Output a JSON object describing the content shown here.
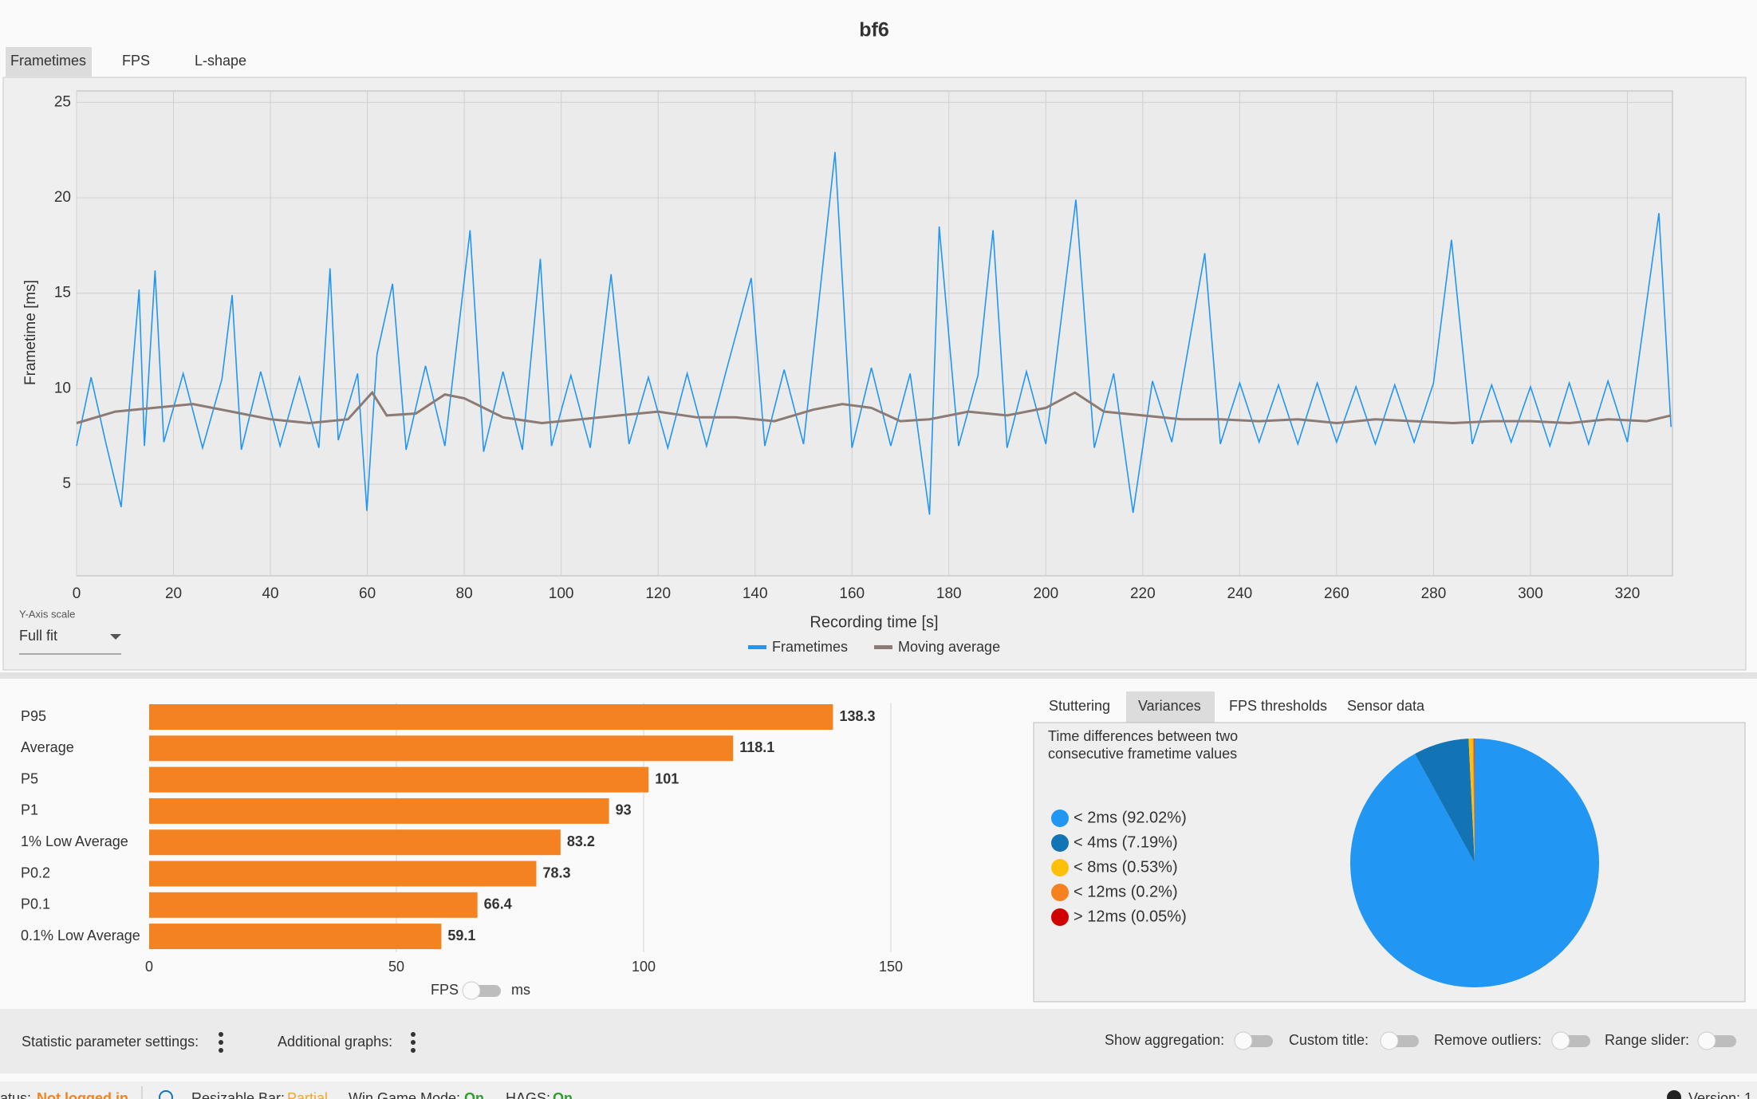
{
  "title": "bf6",
  "tabs": [
    "Frametimes",
    "FPS",
    "L-shape"
  ],
  "y_axis_scale": {
    "label": "Y-Axis scale",
    "value": "Full fit"
  },
  "unit_toggle": [
    "FPS",
    "ms"
  ],
  "side_tabs": [
    "Stuttering",
    "Variances",
    "FPS thresholds",
    "Sensor data"
  ],
  "toolbar": [
    "Statistic parameter settings:",
    "Additional graphs:",
    "Show aggregation:",
    "Custom title:",
    "Remove outliers:",
    "Range slider:"
  ],
  "status_bar": [
    "atus:",
    "Not logged in",
    "Resizable Bar:",
    "Partial",
    "Win Game Mode:",
    "On",
    "HAGS:",
    "On",
    "Version: 1"
  ],
  "chart_data": [
    {
      "type": "line",
      "x_label": "Recording time [s]",
      "y_label": "Frametime [ms]",
      "xlim": [
        0,
        329.3
      ],
      "ylim": [
        0.2,
        25.6
      ],
      "xticks": [
        0,
        20,
        40,
        60,
        80,
        100,
        120,
        140,
        160,
        180,
        200,
        220,
        240,
        260,
        280,
        300,
        320
      ],
      "yticks": [
        5,
        10,
        15,
        20,
        25
      ],
      "grid": true,
      "series": [
        {
          "name": "Frametimes",
          "color": "#2196f3",
          "x": [
            0,
            3,
            6,
            9.2,
            12.9,
            14,
            16.2,
            18,
            22,
            26,
            30,
            32.1,
            34,
            38,
            42,
            46,
            50,
            52.3,
            54,
            58,
            59.9,
            62,
            65.2,
            68,
            72,
            76,
            81.2,
            84,
            88,
            92,
            95.7,
            98,
            102,
            106,
            110.3,
            114,
            118,
            122,
            126,
            130,
            134,
            139.2,
            142,
            146,
            150,
            156.5,
            160,
            164,
            168,
            172,
            176,
            178,
            182,
            186,
            189.1,
            192,
            196,
            200,
            206.2,
            210,
            214,
            218,
            222,
            226,
            232.8,
            236,
            240,
            244,
            248,
            252,
            256,
            260,
            264,
            268,
            272,
            276,
            280,
            283.7,
            288,
            292,
            296,
            300,
            304,
            308,
            312,
            316,
            320,
            326.5,
            329
          ],
          "values": [
            7.0,
            10.6,
            7.2,
            3.8,
            15.2,
            7.0,
            16.2,
            7.2,
            10.8,
            6.9,
            10.5,
            14.9,
            6.8,
            10.9,
            7.0,
            10.6,
            6.9,
            16.3,
            7.3,
            10.8,
            3.6,
            11.8,
            15.5,
            6.8,
            11.2,
            7.0,
            18.3,
            6.7,
            10.9,
            6.8,
            16.8,
            7.0,
            10.7,
            6.9,
            16.0,
            7.1,
            10.6,
            6.9,
            10.8,
            7.0,
            10.9,
            15.8,
            7.0,
            11.0,
            7.1,
            22.4,
            6.9,
            11.1,
            7.0,
            10.8,
            3.4,
            18.5,
            7.0,
            10.7,
            18.3,
            6.9,
            10.9,
            7.1,
            19.9,
            6.9,
            10.8,
            3.5,
            10.4,
            7.2,
            17.1,
            7.1,
            10.3,
            7.2,
            10.2,
            7.1,
            10.3,
            7.2,
            10.1,
            7.1,
            10.2,
            7.2,
            10.3,
            17.8,
            7.1,
            10.2,
            7.2,
            10.1,
            7.0,
            10.3,
            7.1,
            10.4,
            7.2,
            19.2,
            8.0
          ]
        },
        {
          "name": "Moving average",
          "color": "#8c7b75",
          "x": [
            0,
            8,
            16,
            24,
            32,
            40,
            48,
            56,
            61,
            64,
            70,
            76,
            80,
            88,
            96,
            104,
            112,
            120,
            128,
            136,
            144,
            152,
            158,
            164,
            170,
            176,
            184,
            192,
            200,
            206,
            212,
            220,
            228,
            236,
            244,
            252,
            260,
            268,
            276,
            284,
            292,
            300,
            308,
            316,
            324,
            329
          ],
          "values": [
            8.2,
            8.8,
            9.0,
            9.2,
            8.8,
            8.4,
            8.2,
            8.4,
            9.8,
            8.6,
            8.7,
            9.7,
            9.5,
            8.5,
            8.2,
            8.4,
            8.6,
            8.8,
            8.5,
            8.5,
            8.3,
            8.9,
            9.2,
            9.0,
            8.3,
            8.4,
            8.8,
            8.6,
            9.0,
            9.8,
            8.8,
            8.6,
            8.4,
            8.4,
            8.3,
            8.4,
            8.2,
            8.4,
            8.3,
            8.2,
            8.3,
            8.3,
            8.2,
            8.4,
            8.3,
            8.6
          ]
        }
      ]
    },
    {
      "type": "barh",
      "categories": [
        "P95",
        "Average",
        "P5",
        "P1",
        "1% Low Average",
        "P0.2",
        "P0.1",
        "0.1% Low Average"
      ],
      "values": [
        138.3,
        118.1,
        101,
        93,
        83.2,
        78.3,
        66.4,
        59.1
      ],
      "color": "#f58220",
      "xlim": [
        0,
        150
      ],
      "xticks": [
        0,
        50,
        100,
        150
      ],
      "grid": true
    },
    {
      "type": "pie",
      "subtitle": "Time differences between two consecutive frametime values",
      "categories": [
        "< 2ms (92.02%)",
        "< 4ms (7.19%)",
        "< 8ms (0.53%)",
        "< 12ms (0.2%)",
        "> 12ms (0.05%)"
      ],
      "values": [
        92.02,
        7.19,
        0.53,
        0.2,
        0.05
      ],
      "colors": [
        "#2196f3",
        "#1273b5",
        "#ffc107",
        "#f58220",
        "#d00000"
      ]
    }
  ]
}
